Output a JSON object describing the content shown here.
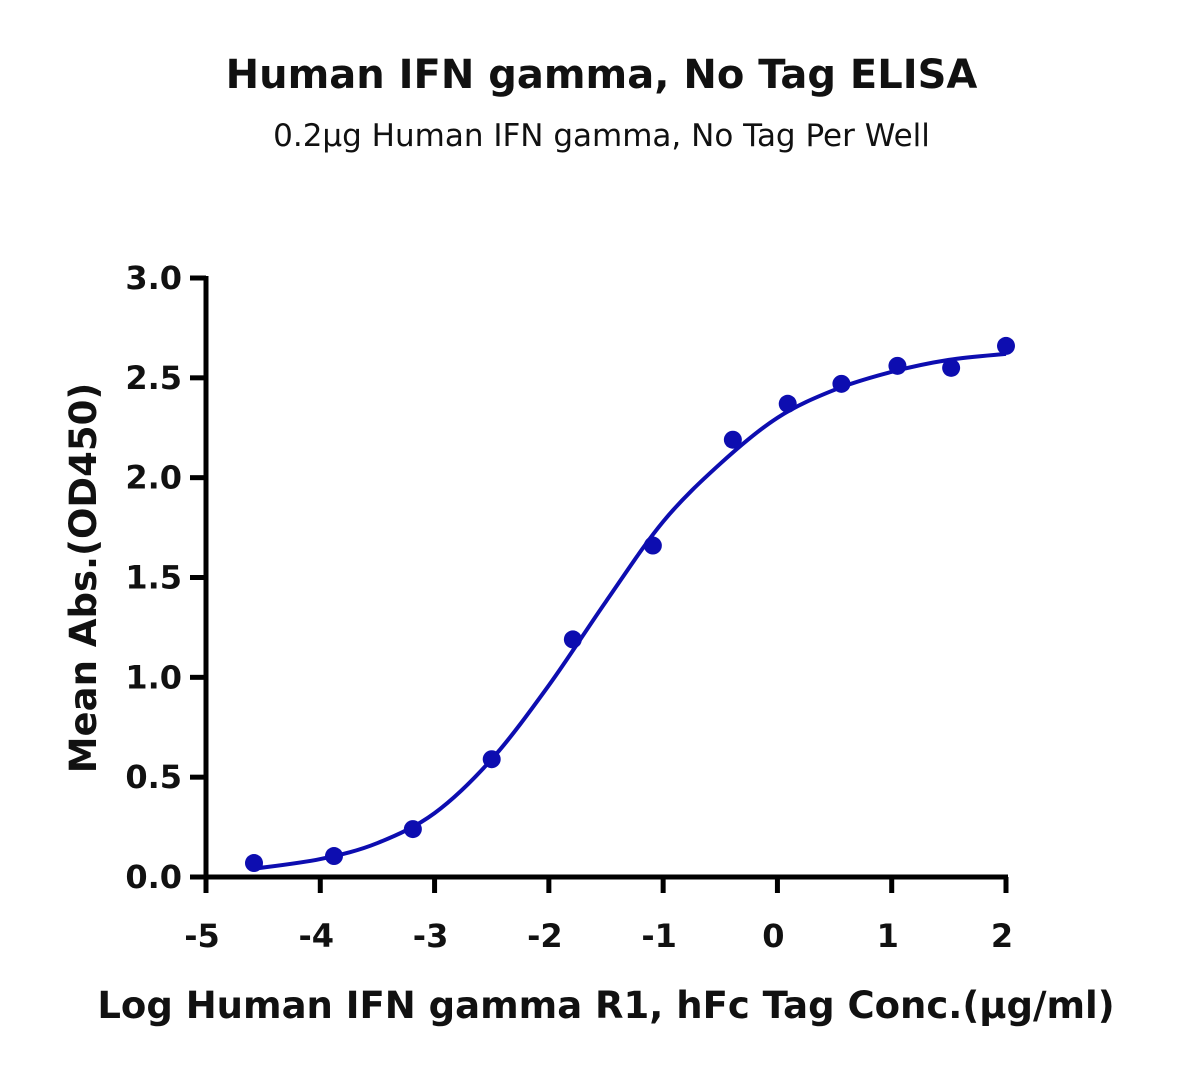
{
  "chart_data": {
    "type": "scatter",
    "title": "Human IFN gamma, No Tag ELISA",
    "subtitle": "0.2μg Human IFN gamma, No Tag Per Well",
    "xlabel": "Log Human IFN gamma R1, hFc Tag Conc.(μg/ml)",
    "ylabel": "Mean Abs.(OD450)",
    "xlim": [
      -5,
      2
    ],
    "ylim": [
      0,
      3.0
    ],
    "xticks": [
      "-5",
      "-4",
      "-3",
      "-2",
      "-1",
      "0",
      "1",
      "2"
    ],
    "yticks": [
      "0.0",
      "0.5",
      "1.0",
      "1.5",
      "2.0",
      "2.5",
      "3.0"
    ],
    "grid": false,
    "color": "#0d0db0",
    "points": {
      "x": [
        -4.58,
        -3.88,
        -3.19,
        -2.5,
        -1.79,
        -1.09,
        -0.39,
        0.09,
        0.56,
        1.05,
        1.52,
        2.0
      ],
      "y": [
        0.07,
        0.105,
        0.24,
        0.59,
        1.19,
        1.66,
        2.19,
        2.37,
        2.47,
        2.56,
        2.55,
        2.66
      ]
    },
    "fit_curve": {
      "x": [
        -4.6,
        -4.0,
        -3.5,
        -3.0,
        -2.5,
        -2.0,
        -1.5,
        -1.0,
        -0.5,
        0.0,
        0.5,
        1.0,
        1.5,
        2.0
      ],
      "y": [
        0.04,
        0.09,
        0.17,
        0.32,
        0.59,
        0.96,
        1.38,
        1.78,
        2.07,
        2.3,
        2.44,
        2.53,
        2.59,
        2.62
      ]
    }
  }
}
